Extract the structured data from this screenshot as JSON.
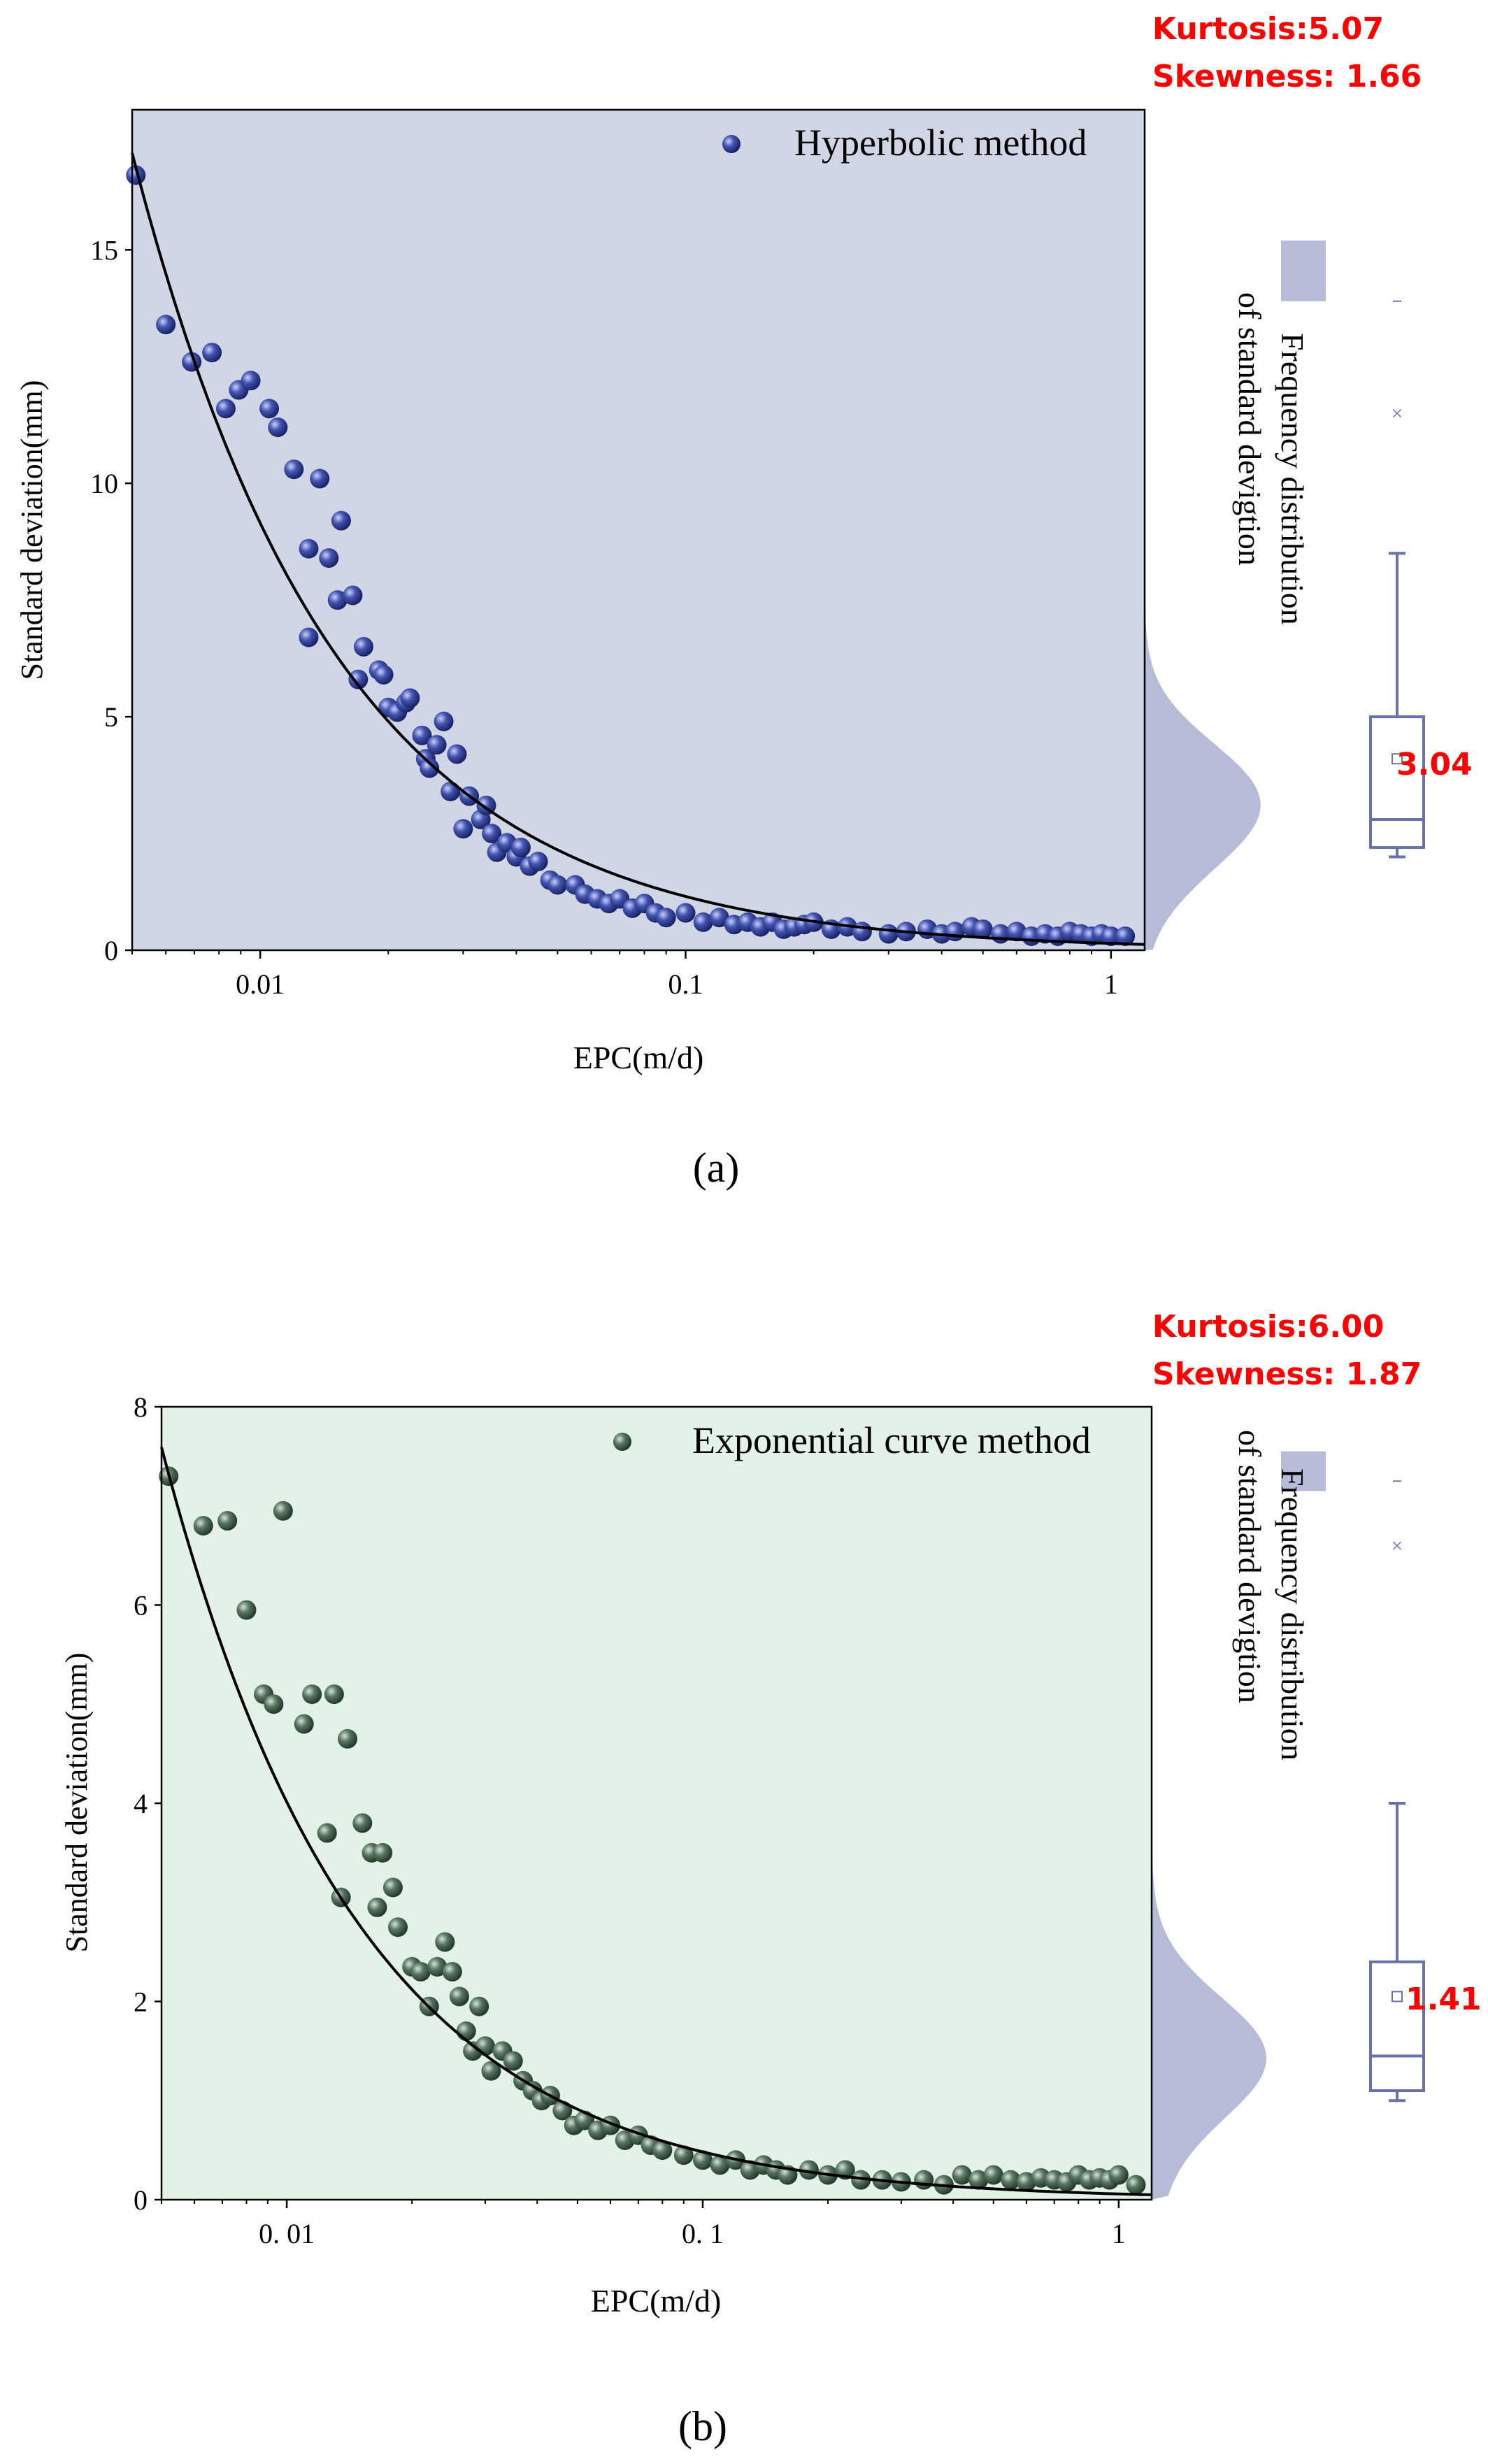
{
  "figure_labels": {
    "a": "(a)",
    "b": "(b)"
  },
  "colors": {
    "stats_text": "#ff0000",
    "curve": "#000000",
    "box": "#6672a8",
    "violin": "#b6bbd7",
    "panel_a_bg": "#d0d6e6",
    "panel_a_points": "#2b3a8f",
    "panel_b_bg": "#e3f2e6",
    "panel_b_points": "#3f5a4a"
  },
  "chart_data": [
    {
      "type": "scatter",
      "id": "a",
      "legend_label": "Hyperbolic method",
      "xlabel": "EPC(m/d)",
      "ylabel": "Standard deviation(mm)",
      "xscale": "log",
      "xlim": [
        0.005,
        1.2
      ],
      "ylim": [
        0,
        18
      ],
      "xticks": [
        0.01,
        0.1,
        1
      ],
      "xtick_labels": [
        "0.01",
        "0.1",
        "1"
      ],
      "yticks": [
        0,
        5,
        10,
        15
      ],
      "ytick_labels": [
        "0",
        "5",
        "10",
        "15"
      ],
      "fit_curve": {
        "form": "y = a / x^b",
        "a": 0.145,
        "b": 0.9
      },
      "side_label": [
        "Frequency distribution",
        "of standard devigtion"
      ],
      "stats": {
        "kurtosis": "Kurtosis:5.07",
        "skewness": "Skewness: 1.66",
        "mean_label": "3.04"
      },
      "box": {
        "min": 2.0,
        "q1": 2.2,
        "median": 2.8,
        "q3": 5.0,
        "mean": 4.1,
        "whisker_high": 8.5,
        "outlier_x": 11.5,
        "outlier_dash": 13.9,
        "dist_top": 15.2,
        "dist_bottom": 13.9
      },
      "points": [
        [
          0.0051,
          16.6
        ],
        [
          0.006,
          13.4
        ],
        [
          0.0069,
          12.6
        ],
        [
          0.0077,
          12.8
        ],
        [
          0.0083,
          11.6
        ],
        [
          0.0089,
          12.0
        ],
        [
          0.0095,
          12.2
        ],
        [
          0.0105,
          11.6
        ],
        [
          0.011,
          11.2
        ],
        [
          0.012,
          10.3
        ],
        [
          0.013,
          8.6
        ],
        [
          0.013,
          6.7
        ],
        [
          0.0138,
          10.1
        ],
        [
          0.0145,
          8.4
        ],
        [
          0.0152,
          7.5
        ],
        [
          0.0155,
          9.2
        ],
        [
          0.0165,
          7.6
        ],
        [
          0.017,
          5.8
        ],
        [
          0.0175,
          6.5
        ],
        [
          0.019,
          6.0
        ],
        [
          0.0195,
          5.9
        ],
        [
          0.02,
          5.2
        ],
        [
          0.021,
          5.1
        ],
        [
          0.022,
          5.3
        ],
        [
          0.0225,
          5.4
        ],
        [
          0.024,
          4.6
        ],
        [
          0.0245,
          4.1
        ],
        [
          0.025,
          3.9
        ],
        [
          0.026,
          4.4
        ],
        [
          0.027,
          4.9
        ],
        [
          0.028,
          3.4
        ],
        [
          0.029,
          4.2
        ],
        [
          0.03,
          2.6
        ],
        [
          0.031,
          3.3
        ],
        [
          0.033,
          2.8
        ],
        [
          0.034,
          3.1
        ],
        [
          0.035,
          2.5
        ],
        [
          0.036,
          2.1
        ],
        [
          0.038,
          2.3
        ],
        [
          0.04,
          2.0
        ],
        [
          0.041,
          2.2
        ],
        [
          0.043,
          1.8
        ],
        [
          0.045,
          1.9
        ],
        [
          0.048,
          1.5
        ],
        [
          0.05,
          1.4
        ],
        [
          0.055,
          1.4
        ],
        [
          0.058,
          1.2
        ],
        [
          0.062,
          1.1
        ],
        [
          0.066,
          1.0
        ],
        [
          0.07,
          1.1
        ],
        [
          0.075,
          0.9
        ],
        [
          0.08,
          1.0
        ],
        [
          0.085,
          0.8
        ],
        [
          0.09,
          0.7
        ],
        [
          0.1,
          0.8
        ],
        [
          0.11,
          0.6
        ],
        [
          0.12,
          0.7
        ],
        [
          0.13,
          0.55
        ],
        [
          0.14,
          0.6
        ],
        [
          0.15,
          0.5
        ],
        [
          0.16,
          0.6
        ],
        [
          0.17,
          0.45
        ],
        [
          0.18,
          0.5
        ],
        [
          0.19,
          0.55
        ],
        [
          0.2,
          0.6
        ],
        [
          0.22,
          0.45
        ],
        [
          0.24,
          0.5
        ],
        [
          0.26,
          0.4
        ],
        [
          0.3,
          0.35
        ],
        [
          0.33,
          0.4
        ],
        [
          0.37,
          0.45
        ],
        [
          0.4,
          0.35
        ],
        [
          0.43,
          0.4
        ],
        [
          0.47,
          0.5
        ],
        [
          0.5,
          0.45
        ],
        [
          0.55,
          0.35
        ],
        [
          0.6,
          0.4
        ],
        [
          0.65,
          0.3
        ],
        [
          0.7,
          0.35
        ],
        [
          0.75,
          0.3
        ],
        [
          0.8,
          0.4
        ],
        [
          0.85,
          0.35
        ],
        [
          0.9,
          0.3
        ],
        [
          0.95,
          0.35
        ],
        [
          1.0,
          0.3
        ],
        [
          1.08,
          0.3
        ]
      ]
    },
    {
      "type": "scatter",
      "id": "b",
      "legend_label": "Exponential curve method",
      "xlabel": "EPC(m/d)",
      "ylabel": "Standard deviation(mm)",
      "xscale": "log",
      "xlim": [
        0.005,
        1.2
      ],
      "ylim": [
        0,
        8
      ],
      "xticks": [
        0.01,
        0.1,
        1
      ],
      "xtick_labels": [
        "0. 01",
        "0. 1",
        "1"
      ],
      "yticks": [
        0,
        2,
        4,
        6,
        8
      ],
      "ytick_labels": [
        "0",
        "2",
        "4",
        "6",
        "8"
      ],
      "fit_curve": {
        "form": "y = a / x^b",
        "a": 0.058,
        "b": 0.92
      },
      "side_label": [
        "Frequency distribution",
        "of standard devigtion"
      ],
      "stats": {
        "kurtosis": "Kurtosis:6.00",
        "skewness": "Skewness: 1.87",
        "mean_label": "1.41"
      },
      "box": {
        "min": 1.0,
        "q1": 1.1,
        "median": 1.45,
        "q3": 2.4,
        "mean": 2.05,
        "whisker_high": 4.0,
        "outlier_x": 6.6,
        "outlier_dash": 7.25,
        "dist_top": 7.55,
        "dist_bottom": 7.15
      },
      "points": [
        [
          0.0052,
          7.3
        ],
        [
          0.0063,
          6.8
        ],
        [
          0.0072,
          6.85
        ],
        [
          0.008,
          5.95
        ],
        [
          0.0088,
          5.1
        ],
        [
          0.0093,
          5.0
        ],
        [
          0.0098,
          6.95
        ],
        [
          0.011,
          4.8
        ],
        [
          0.0115,
          5.1
        ],
        [
          0.0125,
          3.7
        ],
        [
          0.013,
          5.1
        ],
        [
          0.0135,
          3.05
        ],
        [
          0.014,
          4.65
        ],
        [
          0.0152,
          3.8
        ],
        [
          0.016,
          3.5
        ],
        [
          0.0165,
          2.95
        ],
        [
          0.017,
          3.5
        ],
        [
          0.018,
          3.15
        ],
        [
          0.0185,
          2.75
        ],
        [
          0.02,
          2.35
        ],
        [
          0.021,
          2.3
        ],
        [
          0.022,
          1.95
        ],
        [
          0.023,
          2.35
        ],
        [
          0.024,
          2.6
        ],
        [
          0.025,
          2.3
        ],
        [
          0.026,
          2.05
        ],
        [
          0.027,
          1.7
        ],
        [
          0.028,
          1.5
        ],
        [
          0.029,
          1.95
        ],
        [
          0.03,
          1.55
        ],
        [
          0.031,
          1.3
        ],
        [
          0.033,
          1.5
        ],
        [
          0.035,
          1.4
        ],
        [
          0.037,
          1.2
        ],
        [
          0.039,
          1.1
        ],
        [
          0.041,
          1.0
        ],
        [
          0.043,
          1.05
        ],
        [
          0.046,
          0.9
        ],
        [
          0.049,
          0.75
        ],
        [
          0.052,
          0.8
        ],
        [
          0.056,
          0.7
        ],
        [
          0.06,
          0.75
        ],
        [
          0.065,
          0.6
        ],
        [
          0.07,
          0.65
        ],
        [
          0.075,
          0.55
        ],
        [
          0.08,
          0.5
        ],
        [
          0.09,
          0.45
        ],
        [
          0.1,
          0.4
        ],
        [
          0.11,
          0.35
        ],
        [
          0.12,
          0.4
        ],
        [
          0.13,
          0.3
        ],
        [
          0.14,
          0.35
        ],
        [
          0.15,
          0.3
        ],
        [
          0.16,
          0.25
        ],
        [
          0.18,
          0.3
        ],
        [
          0.2,
          0.25
        ],
        [
          0.22,
          0.3
        ],
        [
          0.24,
          0.2
        ],
        [
          0.27,
          0.2
        ],
        [
          0.3,
          0.18
        ],
        [
          0.34,
          0.2
        ],
        [
          0.38,
          0.15
        ],
        [
          0.42,
          0.25
        ],
        [
          0.46,
          0.2
        ],
        [
          0.5,
          0.25
        ],
        [
          0.55,
          0.2
        ],
        [
          0.6,
          0.18
        ],
        [
          0.65,
          0.22
        ],
        [
          0.7,
          0.2
        ],
        [
          0.75,
          0.18
        ],
        [
          0.8,
          0.25
        ],
        [
          0.85,
          0.2
        ],
        [
          0.9,
          0.22
        ],
        [
          0.95,
          0.2
        ],
        [
          1.0,
          0.25
        ],
        [
          1.1,
          0.15
        ]
      ]
    }
  ]
}
